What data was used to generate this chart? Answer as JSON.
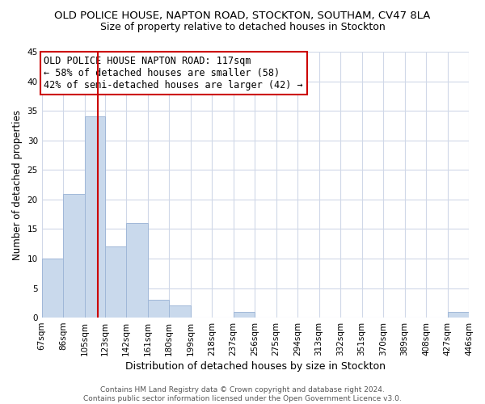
{
  "title": "OLD POLICE HOUSE, NAPTON ROAD, STOCKTON, SOUTHAM, CV47 8LA",
  "subtitle": "Size of property relative to detached houses in Stockton",
  "xlabel": "Distribution of detached houses by size in Stockton",
  "ylabel": "Number of detached properties",
  "bar_color": "#c9d9ec",
  "bar_edge_color": "#a0b8d8",
  "grid_color": "#d0d8e8",
  "bin_edges": [
    67,
    86,
    105,
    123,
    142,
    161,
    180,
    199,
    218,
    237,
    256,
    275,
    294,
    313,
    332,
    351,
    370,
    389,
    408,
    427,
    446
  ],
  "bin_labels": [
    "67sqm",
    "86sqm",
    "105sqm",
    "123sqm",
    "142sqm",
    "161sqm",
    "180sqm",
    "199sqm",
    "218sqm",
    "237sqm",
    "256sqm",
    "275sqm",
    "294sqm",
    "313sqm",
    "332sqm",
    "351sqm",
    "370sqm",
    "389sqm",
    "408sqm",
    "427sqm",
    "446sqm"
  ],
  "counts": [
    10,
    21,
    34,
    12,
    16,
    3,
    2,
    0,
    0,
    1,
    0,
    0,
    0,
    0,
    0,
    0,
    0,
    0,
    0,
    1
  ],
  "ylim": [
    0,
    45
  ],
  "yticks": [
    0,
    5,
    10,
    15,
    20,
    25,
    30,
    35,
    40,
    45
  ],
  "reference_line_x": 117,
  "reference_line_color": "#cc0000",
  "annotation_line1": "OLD POLICE HOUSE NAPTON ROAD: 117sqm",
  "annotation_line2": "← 58% of detached houses are smaller (58)",
  "annotation_line3": "42% of semi-detached houses are larger (42) →",
  "annotation_box_color": "#ffffff",
  "annotation_box_edge": "#cc0000",
  "footnote": "Contains HM Land Registry data © Crown copyright and database right 2024.\nContains public sector information licensed under the Open Government Licence v3.0.",
  "background_color": "#ffffff",
  "title_fontsize": 9.5,
  "subtitle_fontsize": 9,
  "ylabel_fontsize": 8.5,
  "xlabel_fontsize": 9,
  "tick_fontsize": 7.5,
  "annotation_fontsize": 8.5,
  "footnote_fontsize": 6.5
}
